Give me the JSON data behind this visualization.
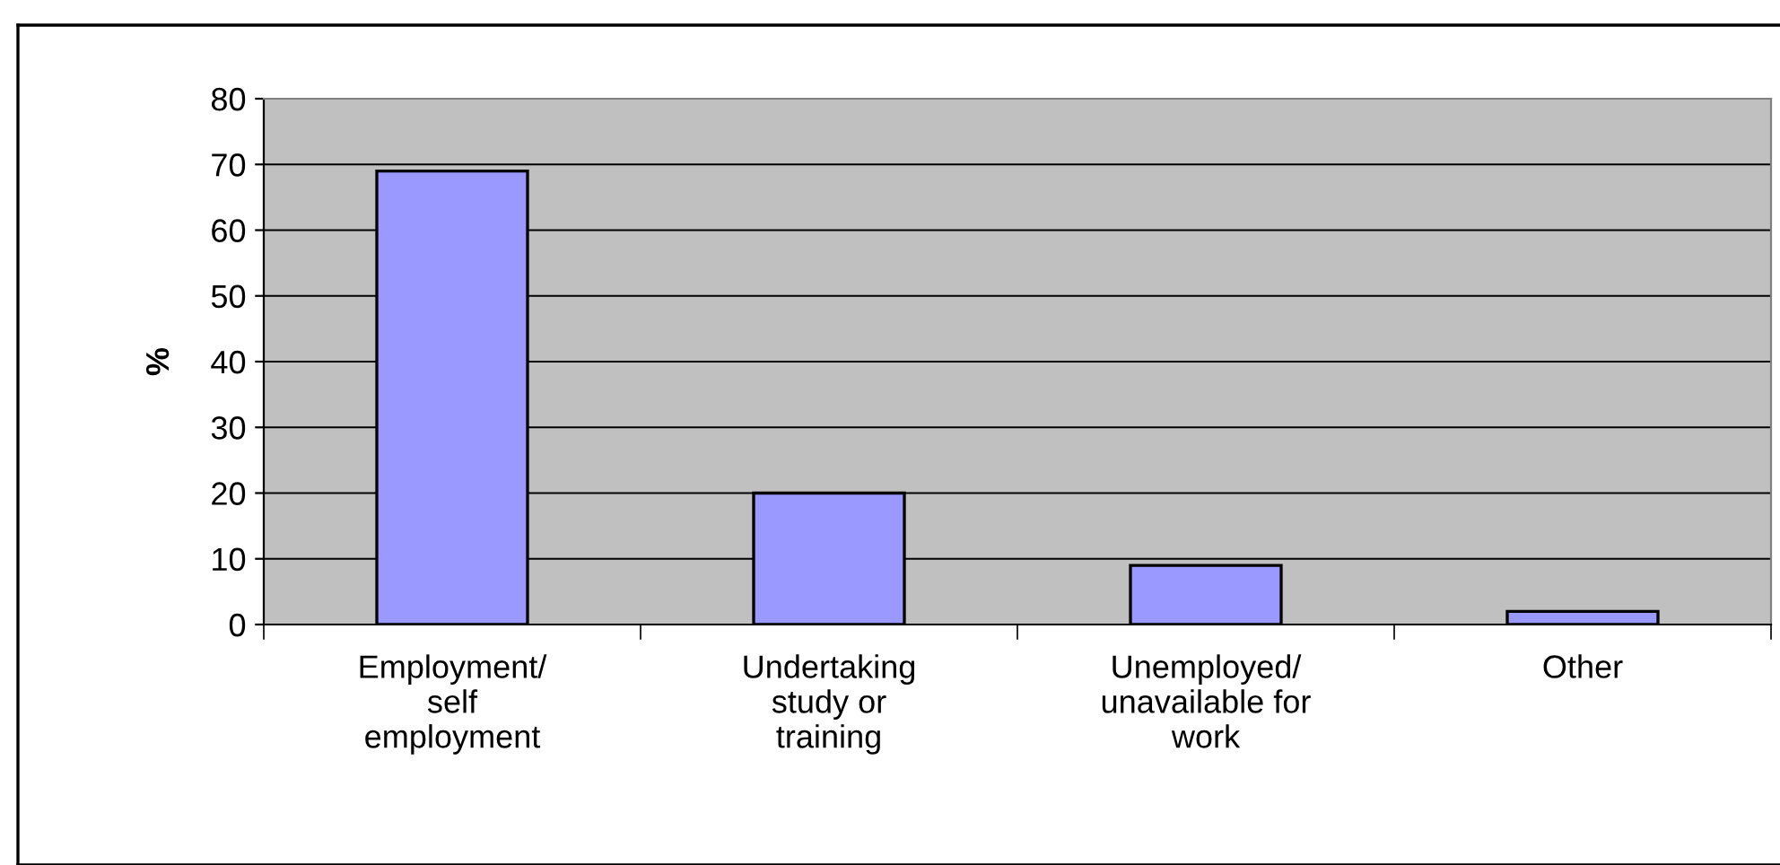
{
  "chart_data": {
    "type": "bar",
    "ylabel": "%",
    "categories": [
      "Employment/\nself\nemployment",
      "Undertaking\nstudy or\ntraining",
      "Unemployed/\nunavailable for\nwork",
      "Other"
    ],
    "values": [
      69,
      20,
      9,
      2
    ],
    "color": "#9999ff",
    "ylim": [
      0,
      80
    ],
    "yticks": [
      0,
      10,
      20,
      30,
      40,
      50,
      60,
      70,
      80
    ],
    "grid": "y"
  }
}
